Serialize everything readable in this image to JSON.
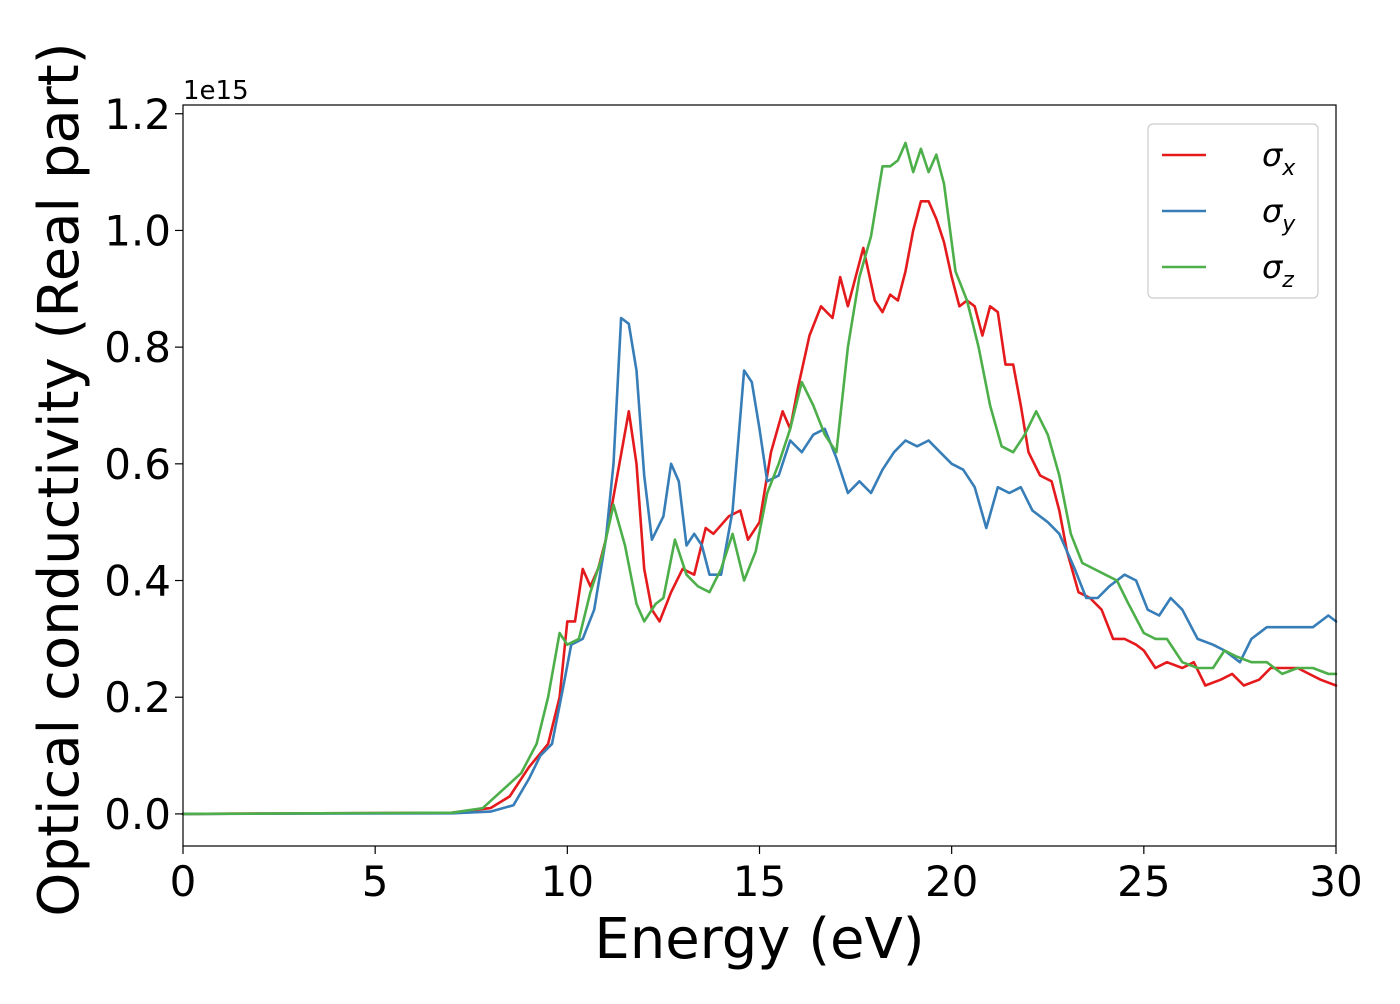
{
  "chart_data": {
    "type": "line",
    "title": "",
    "xlabel": "Energy (eV)",
    "ylabel": "Optical conductivity (Real part)",
    "y_offset_label": "1e15",
    "xlim": [
      0,
      30
    ],
    "ylim": [
      -0.055,
      1.215
    ],
    "xticks": [
      0,
      5,
      10,
      15,
      20,
      25,
      30
    ],
    "xtick_labels": [
      "0",
      "5",
      "10",
      "15",
      "20",
      "25",
      "30"
    ],
    "yticks": [
      0.0,
      0.2,
      0.4,
      0.6,
      0.8,
      1.0,
      1.2
    ],
    "ytick_labels": [
      "0.0",
      "0.2",
      "0.4",
      "0.6",
      "0.8",
      "1.0",
      "1.2"
    ],
    "grid": false,
    "legend": {
      "position": "top-right",
      "entries": [
        {
          "symbol": "σ",
          "subscript": "x",
          "color": "#e41a1c"
        },
        {
          "symbol": "σ",
          "subscript": "y",
          "color": "#377eb8"
        },
        {
          "symbol": "σ",
          "subscript": "z",
          "color": "#4daf4a"
        }
      ]
    },
    "series": [
      {
        "color": "#e41a1c",
        "points": [
          [
            0,
            0
          ],
          [
            7,
            0.002
          ],
          [
            8,
            0.01
          ],
          [
            8.5,
            0.03
          ],
          [
            9,
            0.08
          ],
          [
            9.5,
            0.12
          ],
          [
            9.8,
            0.2
          ],
          [
            10,
            0.33
          ],
          [
            10.2,
            0.33
          ],
          [
            10.4,
            0.42
          ],
          [
            10.6,
            0.39
          ],
          [
            10.8,
            0.42
          ],
          [
            11,
            0.47
          ],
          [
            11.3,
            0.58
          ],
          [
            11.6,
            0.69
          ],
          [
            11.8,
            0.6
          ],
          [
            12,
            0.42
          ],
          [
            12.2,
            0.35
          ],
          [
            12.4,
            0.33
          ],
          [
            12.7,
            0.38
          ],
          [
            13,
            0.42
          ],
          [
            13.3,
            0.41
          ],
          [
            13.6,
            0.49
          ],
          [
            13.8,
            0.48
          ],
          [
            14.2,
            0.51
          ],
          [
            14.5,
            0.52
          ],
          [
            14.7,
            0.47
          ],
          [
            15,
            0.5
          ],
          [
            15.3,
            0.62
          ],
          [
            15.6,
            0.69
          ],
          [
            15.8,
            0.66
          ],
          [
            16,
            0.73
          ],
          [
            16.3,
            0.82
          ],
          [
            16.6,
            0.87
          ],
          [
            16.9,
            0.85
          ],
          [
            17.1,
            0.92
          ],
          [
            17.3,
            0.87
          ],
          [
            17.5,
            0.92
          ],
          [
            17.7,
            0.97
          ],
          [
            18,
            0.88
          ],
          [
            18.2,
            0.86
          ],
          [
            18.4,
            0.89
          ],
          [
            18.6,
            0.88
          ],
          [
            18.8,
            0.93
          ],
          [
            19,
            1.0
          ],
          [
            19.2,
            1.05
          ],
          [
            19.4,
            1.05
          ],
          [
            19.6,
            1.02
          ],
          [
            19.8,
            0.98
          ],
          [
            20,
            0.92
          ],
          [
            20.2,
            0.87
          ],
          [
            20.4,
            0.88
          ],
          [
            20.6,
            0.87
          ],
          [
            20.8,
            0.82
          ],
          [
            21,
            0.87
          ],
          [
            21.2,
            0.86
          ],
          [
            21.4,
            0.77
          ],
          [
            21.6,
            0.77
          ],
          [
            21.8,
            0.7
          ],
          [
            22,
            0.62
          ],
          [
            22.3,
            0.58
          ],
          [
            22.6,
            0.57
          ],
          [
            22.8,
            0.52
          ],
          [
            23,
            0.45
          ],
          [
            23.3,
            0.38
          ],
          [
            23.6,
            0.37
          ],
          [
            23.9,
            0.35
          ],
          [
            24.2,
            0.3
          ],
          [
            24.5,
            0.3
          ],
          [
            24.8,
            0.29
          ],
          [
            25,
            0.28
          ],
          [
            25.3,
            0.25
          ],
          [
            25.6,
            0.26
          ],
          [
            26,
            0.25
          ],
          [
            26.3,
            0.26
          ],
          [
            26.6,
            0.22
          ],
          [
            27,
            0.23
          ],
          [
            27.3,
            0.24
          ],
          [
            27.6,
            0.22
          ],
          [
            28,
            0.23
          ],
          [
            28.3,
            0.25
          ],
          [
            28.7,
            0.25
          ],
          [
            29,
            0.25
          ],
          [
            29.3,
            0.24
          ],
          [
            29.6,
            0.23
          ],
          [
            30,
            0.22
          ]
        ]
      },
      {
        "color": "#377eb8",
        "points": [
          [
            0,
            0
          ],
          [
            7,
            0.001
          ],
          [
            8,
            0.004
          ],
          [
            8.6,
            0.015
          ],
          [
            9,
            0.06
          ],
          [
            9.3,
            0.1
          ],
          [
            9.6,
            0.12
          ],
          [
            9.9,
            0.22
          ],
          [
            10.1,
            0.29
          ],
          [
            10.4,
            0.3
          ],
          [
            10.7,
            0.35
          ],
          [
            11,
            0.47
          ],
          [
            11.2,
            0.6
          ],
          [
            11.4,
            0.85
          ],
          [
            11.6,
            0.84
          ],
          [
            11.8,
            0.76
          ],
          [
            12,
            0.58
          ],
          [
            12.2,
            0.47
          ],
          [
            12.5,
            0.51
          ],
          [
            12.7,
            0.6
          ],
          [
            12.9,
            0.57
          ],
          [
            13.1,
            0.46
          ],
          [
            13.3,
            0.48
          ],
          [
            13.5,
            0.46
          ],
          [
            13.7,
            0.41
          ],
          [
            14,
            0.41
          ],
          [
            14.3,
            0.52
          ],
          [
            14.6,
            0.76
          ],
          [
            14.8,
            0.74
          ],
          [
            15,
            0.66
          ],
          [
            15.2,
            0.57
          ],
          [
            15.5,
            0.58
          ],
          [
            15.8,
            0.64
          ],
          [
            16.1,
            0.62
          ],
          [
            16.4,
            0.65
          ],
          [
            16.7,
            0.66
          ],
          [
            17,
            0.61
          ],
          [
            17.3,
            0.55
          ],
          [
            17.6,
            0.57
          ],
          [
            17.9,
            0.55
          ],
          [
            18.2,
            0.59
          ],
          [
            18.5,
            0.62
          ],
          [
            18.8,
            0.64
          ],
          [
            19.1,
            0.63
          ],
          [
            19.4,
            0.64
          ],
          [
            19.7,
            0.62
          ],
          [
            20,
            0.6
          ],
          [
            20.3,
            0.59
          ],
          [
            20.6,
            0.56
          ],
          [
            20.9,
            0.49
          ],
          [
            21.2,
            0.56
          ],
          [
            21.5,
            0.55
          ],
          [
            21.8,
            0.56
          ],
          [
            22.1,
            0.52
          ],
          [
            22.5,
            0.5
          ],
          [
            22.8,
            0.48
          ],
          [
            23.2,
            0.42
          ],
          [
            23.5,
            0.37
          ],
          [
            23.8,
            0.37
          ],
          [
            24.1,
            0.39
          ],
          [
            24.5,
            0.41
          ],
          [
            24.8,
            0.4
          ],
          [
            25.1,
            0.35
          ],
          [
            25.4,
            0.34
          ],
          [
            25.7,
            0.37
          ],
          [
            26,
            0.35
          ],
          [
            26.4,
            0.3
          ],
          [
            26.8,
            0.29
          ],
          [
            27.1,
            0.28
          ],
          [
            27.5,
            0.26
          ],
          [
            27.8,
            0.3
          ],
          [
            28.2,
            0.32
          ],
          [
            28.6,
            0.32
          ],
          [
            29,
            0.32
          ],
          [
            29.4,
            0.32
          ],
          [
            29.8,
            0.34
          ],
          [
            30,
            0.33
          ]
        ]
      },
      {
        "color": "#4daf4a",
        "points": [
          [
            0,
            0
          ],
          [
            7,
            0.002
          ],
          [
            7.8,
            0.01
          ],
          [
            8.3,
            0.04
          ],
          [
            8.8,
            0.07
          ],
          [
            9.2,
            0.12
          ],
          [
            9.5,
            0.2
          ],
          [
            9.8,
            0.31
          ],
          [
            10,
            0.29
          ],
          [
            10.3,
            0.3
          ],
          [
            10.6,
            0.38
          ],
          [
            10.9,
            0.44
          ],
          [
            11.2,
            0.53
          ],
          [
            11.5,
            0.46
          ],
          [
            11.8,
            0.36
          ],
          [
            12,
            0.33
          ],
          [
            12.3,
            0.36
          ],
          [
            12.5,
            0.37
          ],
          [
            12.8,
            0.47
          ],
          [
            13.1,
            0.41
          ],
          [
            13.4,
            0.39
          ],
          [
            13.7,
            0.38
          ],
          [
            14,
            0.42
          ],
          [
            14.3,
            0.48
          ],
          [
            14.6,
            0.4
          ],
          [
            14.9,
            0.45
          ],
          [
            15.2,
            0.55
          ],
          [
            15.5,
            0.6
          ],
          [
            15.8,
            0.66
          ],
          [
            16.1,
            0.74
          ],
          [
            16.4,
            0.7
          ],
          [
            16.7,
            0.65
          ],
          [
            17,
            0.62
          ],
          [
            17.3,
            0.8
          ],
          [
            17.6,
            0.92
          ],
          [
            17.9,
            0.99
          ],
          [
            18.2,
            1.11
          ],
          [
            18.4,
            1.11
          ],
          [
            18.6,
            1.12
          ],
          [
            18.8,
            1.15
          ],
          [
            19,
            1.1
          ],
          [
            19.2,
            1.14
          ],
          [
            19.4,
            1.1
          ],
          [
            19.6,
            1.13
          ],
          [
            19.8,
            1.08
          ],
          [
            20.1,
            0.93
          ],
          [
            20.4,
            0.88
          ],
          [
            20.7,
            0.8
          ],
          [
            21,
            0.7
          ],
          [
            21.3,
            0.63
          ],
          [
            21.6,
            0.62
          ],
          [
            21.9,
            0.65
          ],
          [
            22.2,
            0.69
          ],
          [
            22.5,
            0.65
          ],
          [
            22.8,
            0.58
          ],
          [
            23.1,
            0.48
          ],
          [
            23.4,
            0.43
          ],
          [
            23.7,
            0.42
          ],
          [
            24,
            0.41
          ],
          [
            24.3,
            0.4
          ],
          [
            24.6,
            0.36
          ],
          [
            25,
            0.31
          ],
          [
            25.3,
            0.3
          ],
          [
            25.6,
            0.3
          ],
          [
            26,
            0.26
          ],
          [
            26.4,
            0.25
          ],
          [
            26.8,
            0.25
          ],
          [
            27.1,
            0.28
          ],
          [
            27.4,
            0.27
          ],
          [
            27.8,
            0.26
          ],
          [
            28.2,
            0.26
          ],
          [
            28.6,
            0.24
          ],
          [
            29,
            0.25
          ],
          [
            29.4,
            0.25
          ],
          [
            29.8,
            0.24
          ],
          [
            30,
            0.24
          ]
        ]
      }
    ]
  }
}
